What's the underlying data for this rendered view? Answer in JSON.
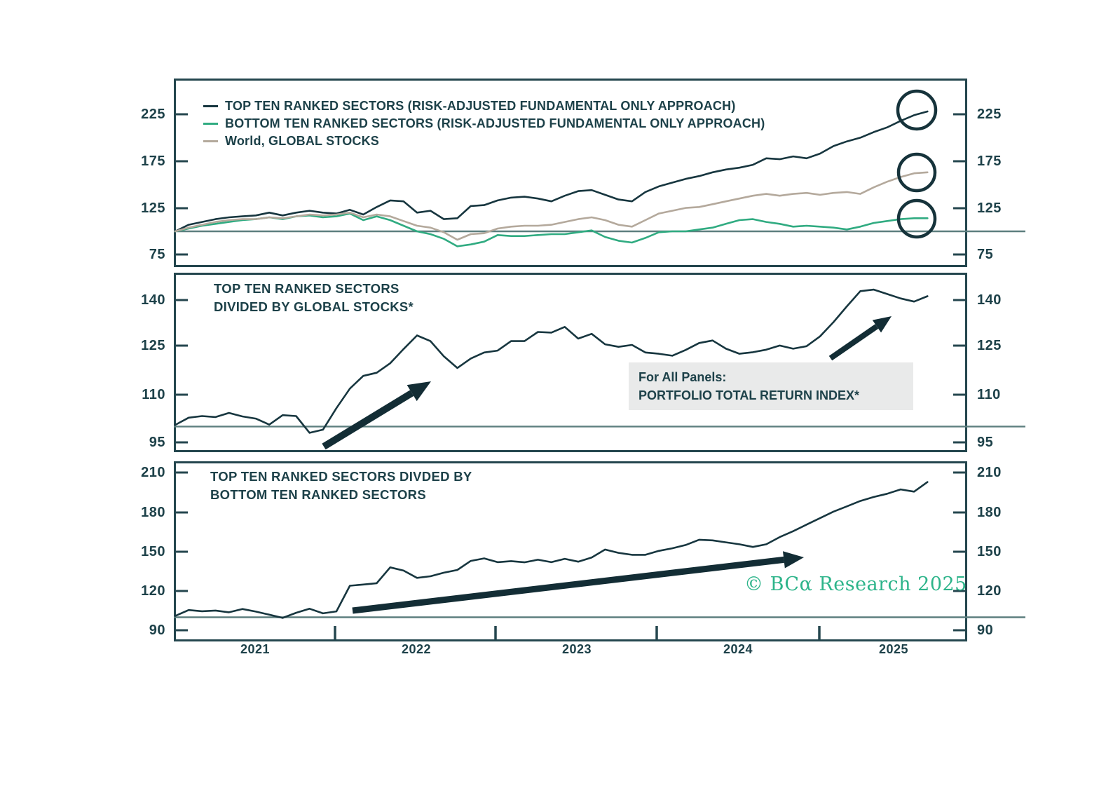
{
  "colors": {
    "top_ten": "#17363f",
    "bottom_ten": "#30ab81",
    "world": "#b4a99c",
    "frame": "#24464e",
    "text": "#1d4149",
    "ref_line": "#5d7f7f",
    "arrow": "#132d35",
    "circle": "#16333b",
    "logo_green": "#2db48a",
    "info_box_bg": "#e9eaea"
  },
  "x_axis": {
    "years": [
      "2021",
      "2022",
      "2023",
      "2024",
      "2025"
    ]
  },
  "legend": {
    "items": [
      {
        "label": "TOP TEN RANKED SECTORS (RISK-ADJUSTED FUNDAMENTAL ONLY APPROACH)",
        "color_key": "top_ten"
      },
      {
        "label": "BOTTOM TEN RANKED SECTORS (RISK-ADJUSTED FUNDAMENTAL ONLY APPROACH)",
        "color_key": "bottom_ten"
      },
      {
        "label": "World, GLOBAL STOCKS",
        "color_key": "world"
      }
    ]
  },
  "info_box": {
    "text": "For All Panels:\nPORTFOLIO TOTAL RETURN INDEX*"
  },
  "logo": {
    "text": "© BCα Research 2025"
  },
  "chart_data": [
    {
      "type": "line",
      "title": "",
      "x_start": "2021-01",
      "x_step_months": 1,
      "n_points": 57,
      "ylim": [
        75,
        225
      ],
      "ref_line": 100,
      "y_tick_labels": [
        "225",
        "175",
        "125",
        "75"
      ],
      "y_tick_values": [
        225,
        175,
        125,
        75
      ],
      "end_circles": true,
      "series": [
        {
          "name": "TOP TEN RANKED SECTORS (RISK-ADJUSTED FUNDAMENTAL ONLY APPROACH)",
          "color_key": "top_ten",
          "values": [
            100,
            107,
            110,
            113,
            115,
            116,
            117,
            120,
            117,
            120,
            122,
            120,
            119,
            123,
            118,
            126,
            133,
            132,
            120,
            122,
            113,
            114,
            127,
            128,
            133,
            136,
            137,
            135,
            132,
            138,
            143,
            144,
            139,
            134,
            132,
            142,
            148,
            152,
            156,
            159,
            163,
            166,
            168,
            171,
            178,
            177,
            180,
            178,
            183,
            191,
            196,
            200,
            206,
            211,
            218,
            224,
            228
          ]
        },
        {
          "name": "BOTTOM TEN RANKED SECTORS (RISK-ADJUSTED FUNDAMENTAL ONLY APPROACH)",
          "color_key": "bottom_ten",
          "values": [
            100,
            103,
            106,
            108,
            110,
            112,
            113,
            115,
            113,
            116,
            117,
            115,
            116,
            119,
            112,
            116,
            112,
            106,
            100,
            97,
            92,
            84,
            86,
            89,
            96,
            95,
            95,
            96,
            97,
            97,
            99,
            101,
            94,
            90,
            88,
            93,
            99,
            100,
            100,
            102,
            104,
            108,
            112,
            113,
            110,
            108,
            105,
            106,
            105,
            104,
            102,
            105,
            109,
            111,
            113,
            114,
            114
          ]
        },
        {
          "name": "World, GLOBAL STOCKS",
          "color_key": "world",
          "values": [
            100,
            104,
            107,
            110,
            112,
            113,
            113,
            115,
            114,
            116,
            118,
            117,
            118,
            120,
            115,
            118,
            116,
            111,
            106,
            104,
            99,
            91,
            97,
            98,
            103,
            105,
            106,
            106,
            107,
            110,
            113,
            115,
            112,
            107,
            105,
            112,
            119,
            122,
            125,
            126,
            129,
            132,
            135,
            138,
            140,
            138,
            140,
            141,
            139,
            141,
            142,
            140,
            147,
            153,
            158,
            162,
            163
          ]
        }
      ]
    },
    {
      "type": "line",
      "title": "TOP TEN RANKED SECTORS\nDIVIDED BY GLOBAL STOCKS*",
      "x_start": "2021-01",
      "x_step_months": 1,
      "n_points": 57,
      "ylim": [
        95,
        140
      ],
      "ref_line": 100,
      "y_tick_labels": [
        "140",
        "125",
        "110",
        "95"
      ],
      "y_tick_values": [
        140,
        125,
        110,
        95
      ],
      "series": [
        {
          "name": "TOP TEN RANKED SECTORS DIVIDED BY GLOBAL STOCKS*",
          "color_key": "top_ten",
          "values": [
            100.5,
            102.8,
            103.3,
            103,
            104.3,
            103.2,
            102.5,
            100.6,
            103.6,
            103.3,
            98,
            99,
            105.8,
            112,
            116,
            117,
            120,
            124.5,
            128.8,
            127,
            122.2,
            118.5,
            121.5,
            123.4,
            124,
            127,
            127,
            129.9,
            129.7,
            131.5,
            127.8,
            129.3,
            126,
            125.2,
            125.8,
            123.4,
            123,
            122.4,
            124.2,
            126.4,
            127.2,
            124.6,
            123,
            123.5,
            124.3,
            125.6,
            124.6,
            125.4,
            128.5,
            133,
            138,
            142.8,
            143.3,
            141.9,
            140.5,
            139.5,
            141.2
          ]
        }
      ]
    },
    {
      "type": "line",
      "title": "TOP TEN RANKED SECTORS DIVDED BY\nBOTTOM TEN RANKED SECTORS",
      "x_start": "2021-01",
      "x_step_months": 1,
      "n_points": 57,
      "ylim": [
        90,
        210
      ],
      "ref_line": 100,
      "y_tick_labels": [
        "210",
        "180",
        "150",
        "120",
        "90"
      ],
      "y_tick_values": [
        210,
        180,
        150,
        120,
        90
      ],
      "series": [
        {
          "name": "TOP TEN RANKED SECTORS DIVDED BY BOTTOM TEN RANKED SECTORS",
          "color_key": "top_ten",
          "values": [
            101,
            105.5,
            104.6,
            105.1,
            103.8,
            106.3,
            104.3,
            102,
            99.5,
            103.4,
            106.5,
            103,
            104.5,
            124,
            124.9,
            125.9,
            138,
            135.5,
            130,
            131.2,
            133.9,
            136,
            142.9,
            144.8,
            141.9,
            142.7,
            141.8,
            143.8,
            141.9,
            144.5,
            142.3,
            145.5,
            151.5,
            149,
            147.5,
            147.5,
            150.5,
            152.5,
            155,
            159,
            158.5,
            157,
            155.5,
            153.5,
            155.5,
            161,
            165.5,
            170.5,
            175.4,
            180.4,
            184.4,
            188.5,
            191.5,
            194,
            197.3,
            195.6,
            202.9
          ]
        }
      ]
    }
  ]
}
